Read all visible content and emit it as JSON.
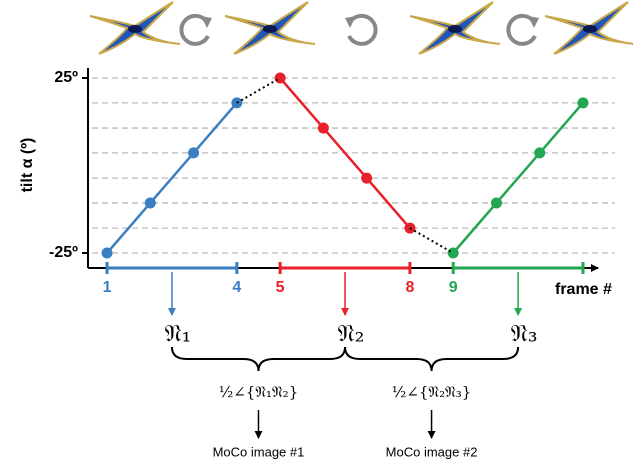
{
  "chart_data": {
    "type": "line",
    "y_label": "tilt α (º)",
    "x_label": "frame #",
    "xlim": [
      0.56,
      12.8
    ],
    "ylim": [
      -25,
      25
    ],
    "xticks": [
      1,
      4,
      5,
      8,
      9
    ],
    "yticks": [
      {
        "value": 25,
        "label": "25º"
      },
      {
        "value": -25,
        "label": "-25º"
      }
    ],
    "ygrid": [
      -25,
      -17.9,
      -10.7,
      -3.6,
      3.6,
      10.7,
      17.9,
      25
    ],
    "series": [
      {
        "color": "#3a7fc1",
        "x": [
          1,
          2,
          3,
          4
        ],
        "values": [
          -25,
          -10.7,
          3.6,
          17.9
        ]
      },
      {
        "color": "#e8202a",
        "x": [
          5,
          6,
          7,
          8
        ],
        "values": [
          25,
          10.7,
          -3.6,
          -17.9
        ]
      },
      {
        "color": "#22a650",
        "x": [
          9,
          10,
          11,
          12
        ],
        "values": [
          -25,
          -10.7,
          3.6,
          17.9
        ]
      }
    ]
  },
  "diagram": {
    "averages": [
      "𝔑₁",
      "𝔑₂",
      "𝔑₃"
    ],
    "pairs": [
      {
        "formula": "½∠{𝔑₁𝔑₂}",
        "output": "MoCo image #1"
      },
      {
        "formula": "½∠{𝔑₂𝔑₃}",
        "output": "MoCo image #2"
      }
    ]
  }
}
